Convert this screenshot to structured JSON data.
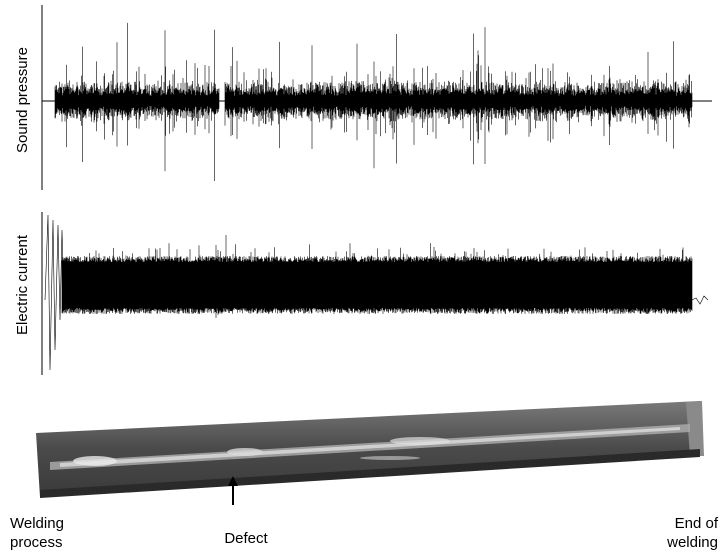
{
  "axes": {
    "top_label": "Sound pressure",
    "middle_label": "Electric current"
  },
  "annotations": {
    "start": [
      "Welding",
      "process"
    ],
    "defect": "Defect",
    "end": [
      "End of",
      "welding"
    ]
  }
}
